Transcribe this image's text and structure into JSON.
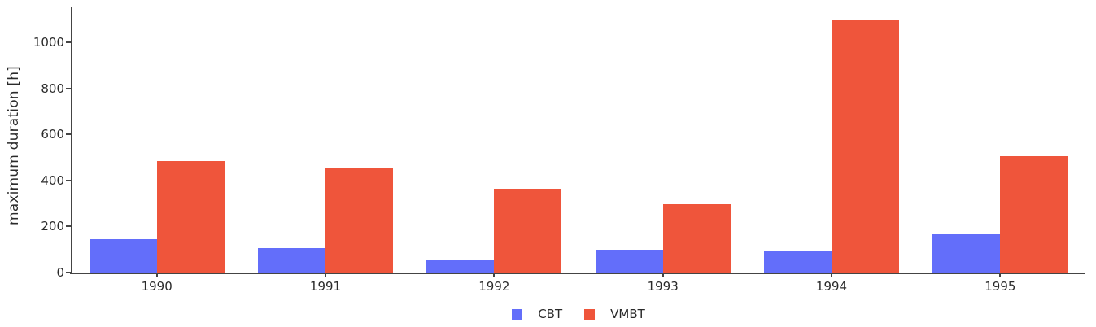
{
  "chart_data": {
    "type": "bar",
    "bar_mode": "grouped",
    "title": "",
    "xlabel": "",
    "ylabel": "maximum duration [h]",
    "categories": [
      "1990",
      "1991",
      "1992",
      "1993",
      "1994",
      "1995"
    ],
    "series": [
      {
        "name": "CBT",
        "color": "#636EFA",
        "values": [
          145,
          107,
          53,
          100,
          91,
          165
        ]
      },
      {
        "name": "VMBT",
        "color": "#EF553B",
        "values": [
          485,
          455,
          365,
          297,
          1097,
          507
        ]
      }
    ],
    "ylim": [
      0,
      1156
    ],
    "yticks": [
      0,
      200,
      400,
      600,
      800,
      1000
    ],
    "grid": false,
    "legend_position": "bottom-center"
  },
  "colors": {
    "axis": "#444444",
    "text": "#2a2a2a",
    "background": "#ffffff",
    "series_blue": "#636EFA",
    "series_red": "#EF553B"
  }
}
